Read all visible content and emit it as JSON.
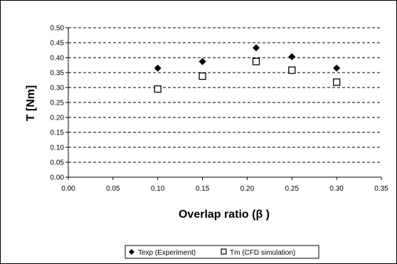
{
  "chart_data": {
    "type": "scatter",
    "xlabel": "Overlap ratio (β )",
    "ylabel": "T [Nm]",
    "xlim": [
      0,
      0.35
    ],
    "ylim": [
      0,
      0.5
    ],
    "x_ticks": [
      "0.00",
      "0.05",
      "0.10",
      "0.15",
      "0.20",
      "0.25",
      "0.30",
      "0.35"
    ],
    "y_ticks": [
      "0.00",
      "0.05",
      "0.10",
      "0.15",
      "0.20",
      "0.25",
      "0.30",
      "0.35",
      "0.40",
      "0.45",
      "0.50"
    ],
    "grid": "horizontal dashed",
    "legend_position": "bottom",
    "series": [
      {
        "name": "Texp (Experiment)",
        "marker": "filled-diamond",
        "color": "#000000",
        "x": [
          0.1,
          0.15,
          0.21,
          0.25,
          0.3
        ],
        "y": [
          0.365,
          0.387,
          0.433,
          0.403,
          0.365
        ]
      },
      {
        "name": "Tm (CFD simulation)",
        "marker": "open-square",
        "color": "#000000",
        "x": [
          0.1,
          0.15,
          0.21,
          0.25,
          0.3
        ],
        "y": [
          0.295,
          0.338,
          0.387,
          0.358,
          0.318
        ]
      }
    ]
  }
}
